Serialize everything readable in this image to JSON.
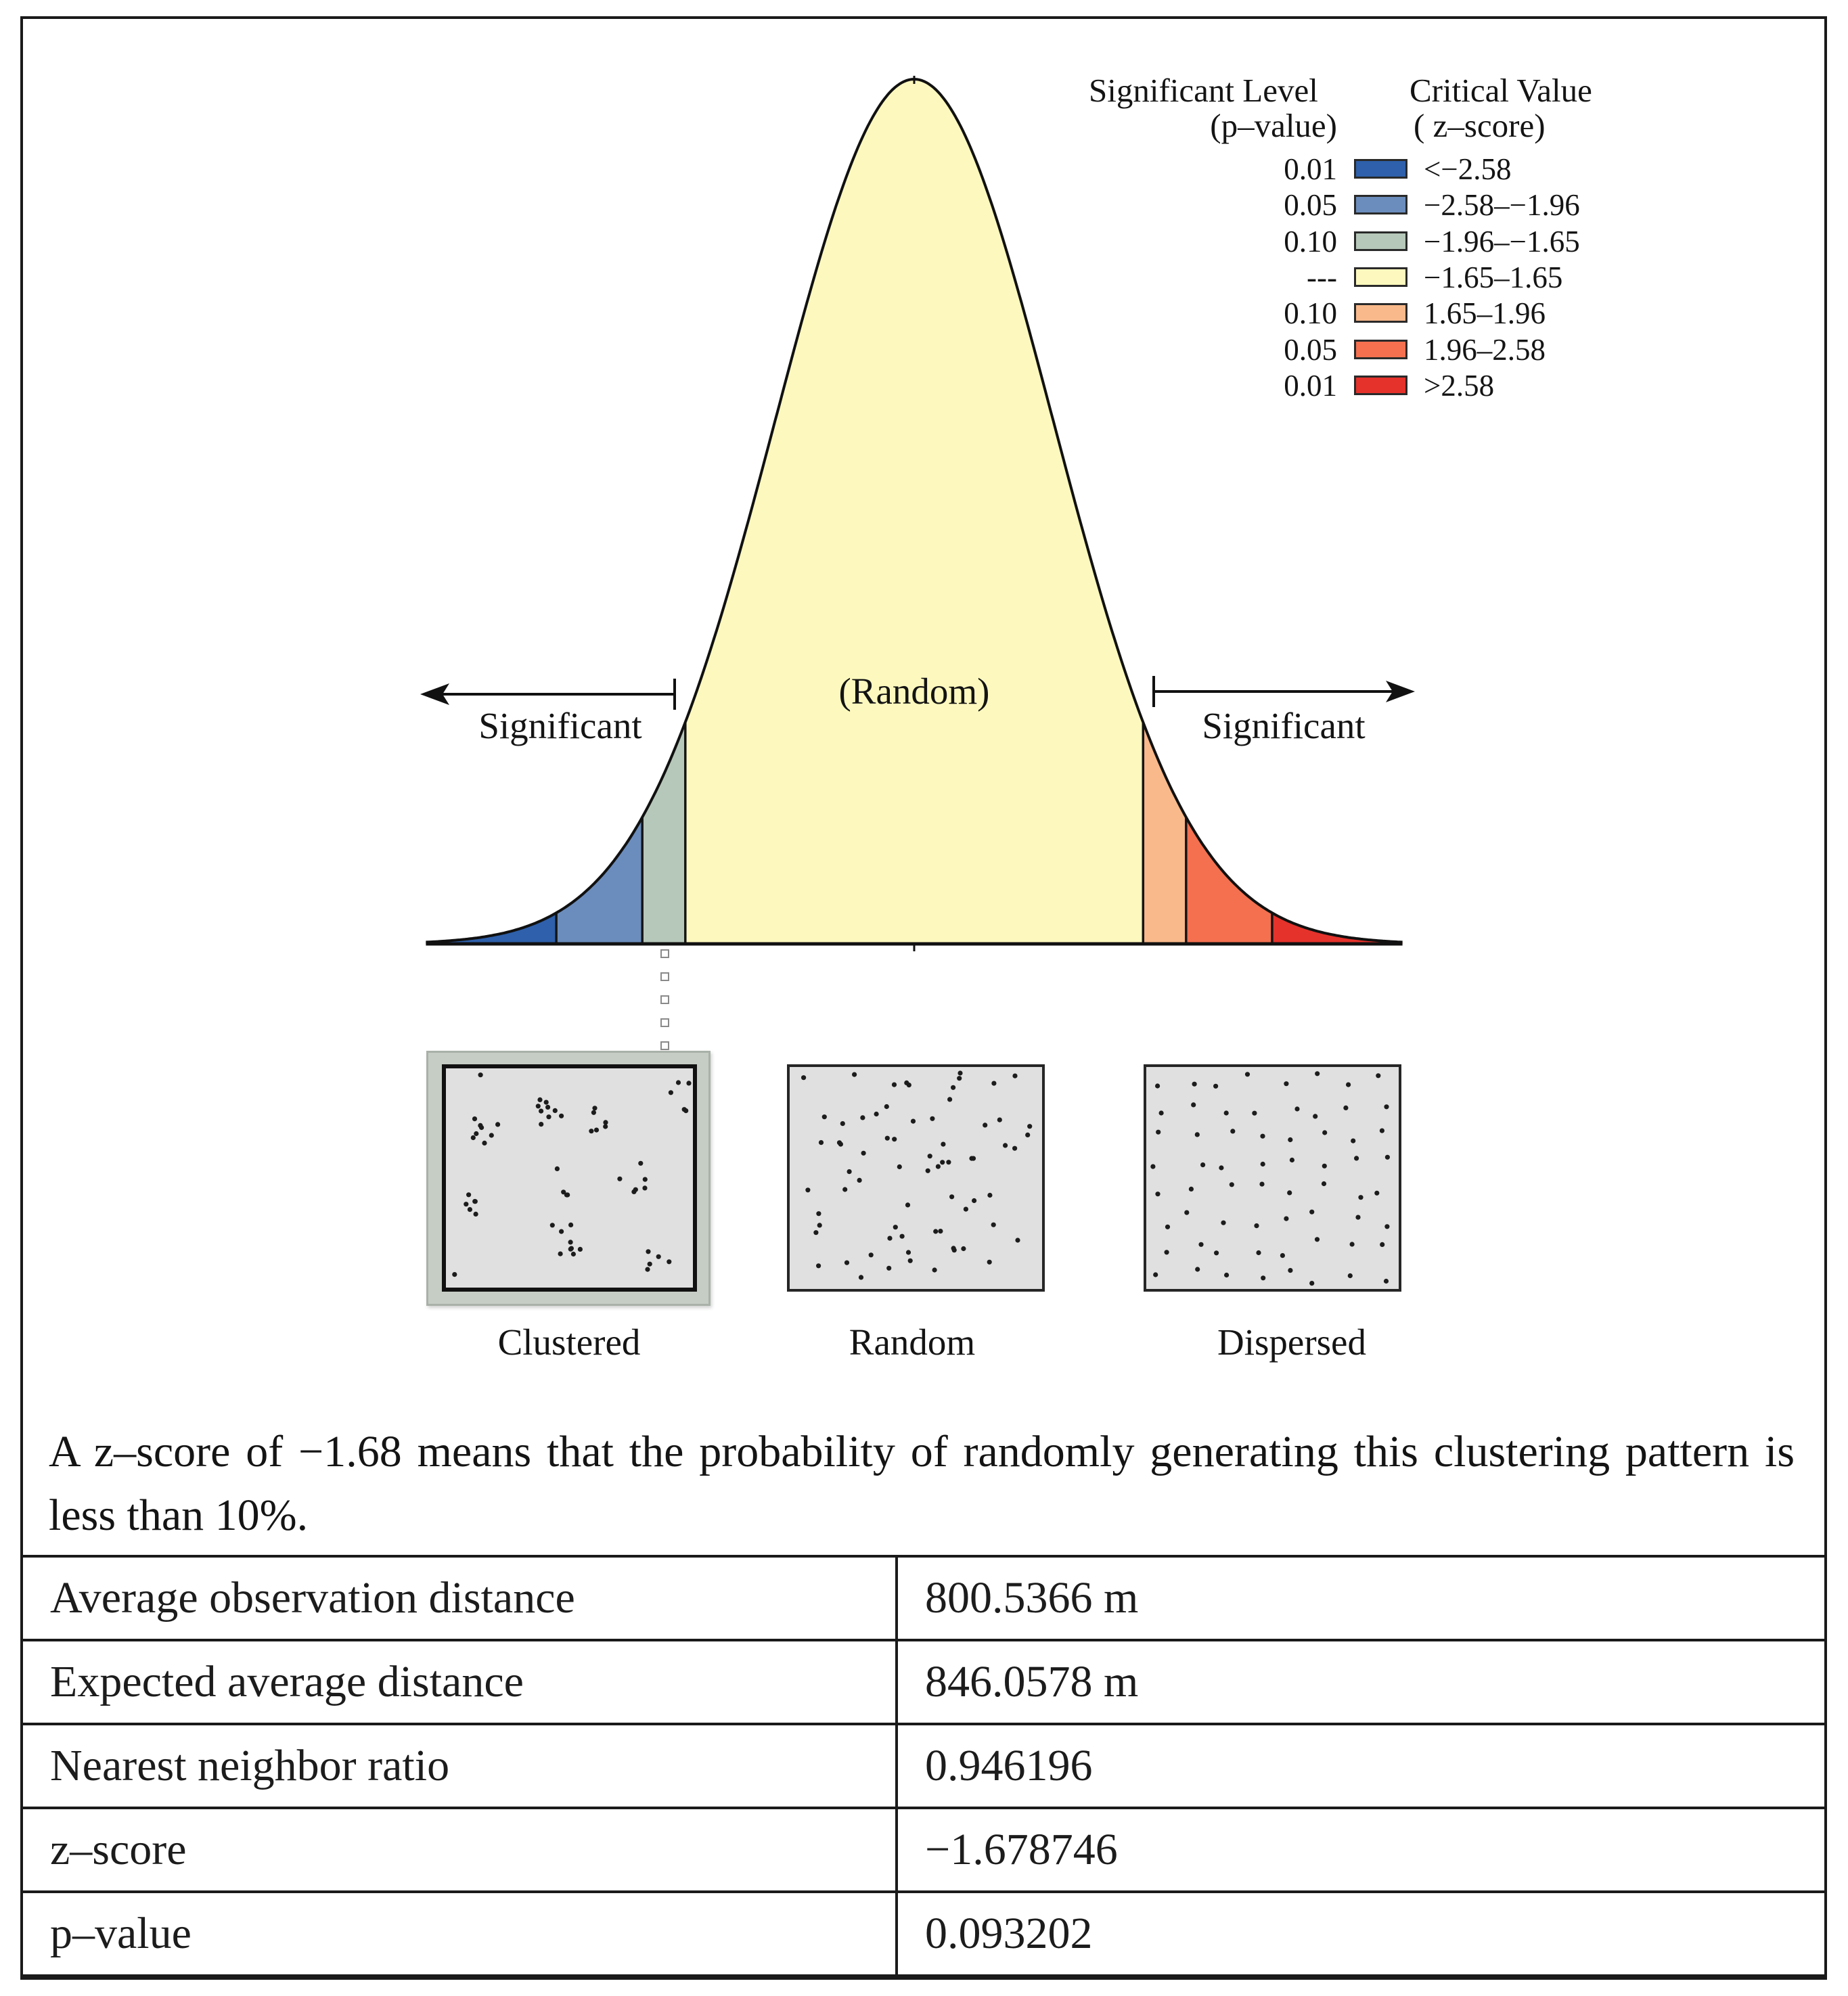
{
  "legend": {
    "significance_header": "Significant Level",
    "pvalue_header": "(p–value)",
    "critical_header": "Critical Value",
    "zscore_header": "( z–score)",
    "rows": [
      {
        "p": "0.01",
        "range": "<−2.58",
        "color": "#2e60ab"
      },
      {
        "p": "0.05",
        "range": "−2.58–−1.96",
        "color": "#6b8dbd"
      },
      {
        "p": "0.10",
        "range": "−1.96–−1.65",
        "color": "#b6c8b9"
      },
      {
        "p": "---",
        "range": "−1.65–1.65",
        "color": "#fdf9be"
      },
      {
        "p": "0.10",
        "range": "1.65–1.96",
        "color": "#f9b98b"
      },
      {
        "p": "0.05",
        "range": "1.96–2.58",
        "color": "#f4704f"
      },
      {
        "p": "0.01",
        "range": ">2.58",
        "color": "#e5322b"
      }
    ]
  },
  "bell_curve": {
    "critical_values": [
      1.65,
      1.96,
      2.58
    ],
    "left_label": "Significant",
    "center_label": "(Random)",
    "right_label": "Significant"
  },
  "patterns": [
    {
      "label": "Clustered"
    },
    {
      "label": "Random"
    },
    {
      "label": "Dispersed"
    }
  ],
  "caption": "A z–score of −1.68 means that the probability of randomly generating this clustering pattern is less than 10%.",
  "results_table": [
    {
      "label": "Average observation distance",
      "value": "800.5366 m"
    },
    {
      "label": "Expected average distance",
      "value": "846.0578 m"
    },
    {
      "label": "Nearest neighbor ratio",
      "value": "0.946196"
    },
    {
      "label": "z–score",
      "value": "−1.678746"
    },
    {
      "label": "p–value",
      "value": "0.093202"
    }
  ]
}
